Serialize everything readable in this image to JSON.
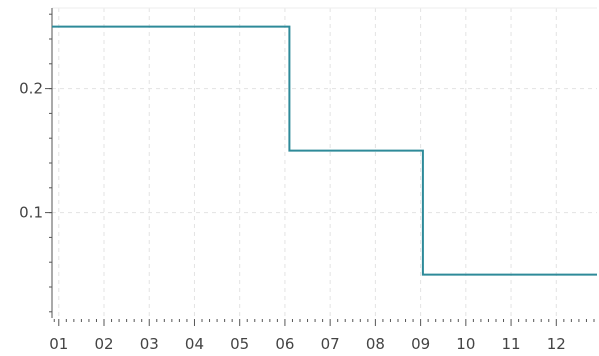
{
  "chart_data": {
    "type": "line",
    "step": true,
    "title": "",
    "xlabel": "",
    "ylabel": "",
    "x_tick_labels": [
      "01",
      "02",
      "03",
      "04",
      "05",
      "06",
      "07",
      "08",
      "09",
      "10",
      "11",
      "12"
    ],
    "y_tick_labels": [
      "0.1",
      "0.2"
    ],
    "y_ticks": [
      0.1,
      0.2
    ],
    "ylim": [
      0.015,
      0.265
    ],
    "xlim": [
      0.85,
      12.9
    ],
    "grid": true,
    "series": [
      {
        "color": "#2e8a99",
        "points": [
          {
            "x": 0.85,
            "y": 0.25
          },
          {
            "x": 6.1,
            "y": 0.25
          },
          {
            "x": 6.1,
            "y": 0.15
          },
          {
            "x": 9.05,
            "y": 0.15
          },
          {
            "x": 9.05,
            "y": 0.05
          },
          {
            "x": 12.9,
            "y": 0.05
          }
        ]
      }
    ]
  }
}
